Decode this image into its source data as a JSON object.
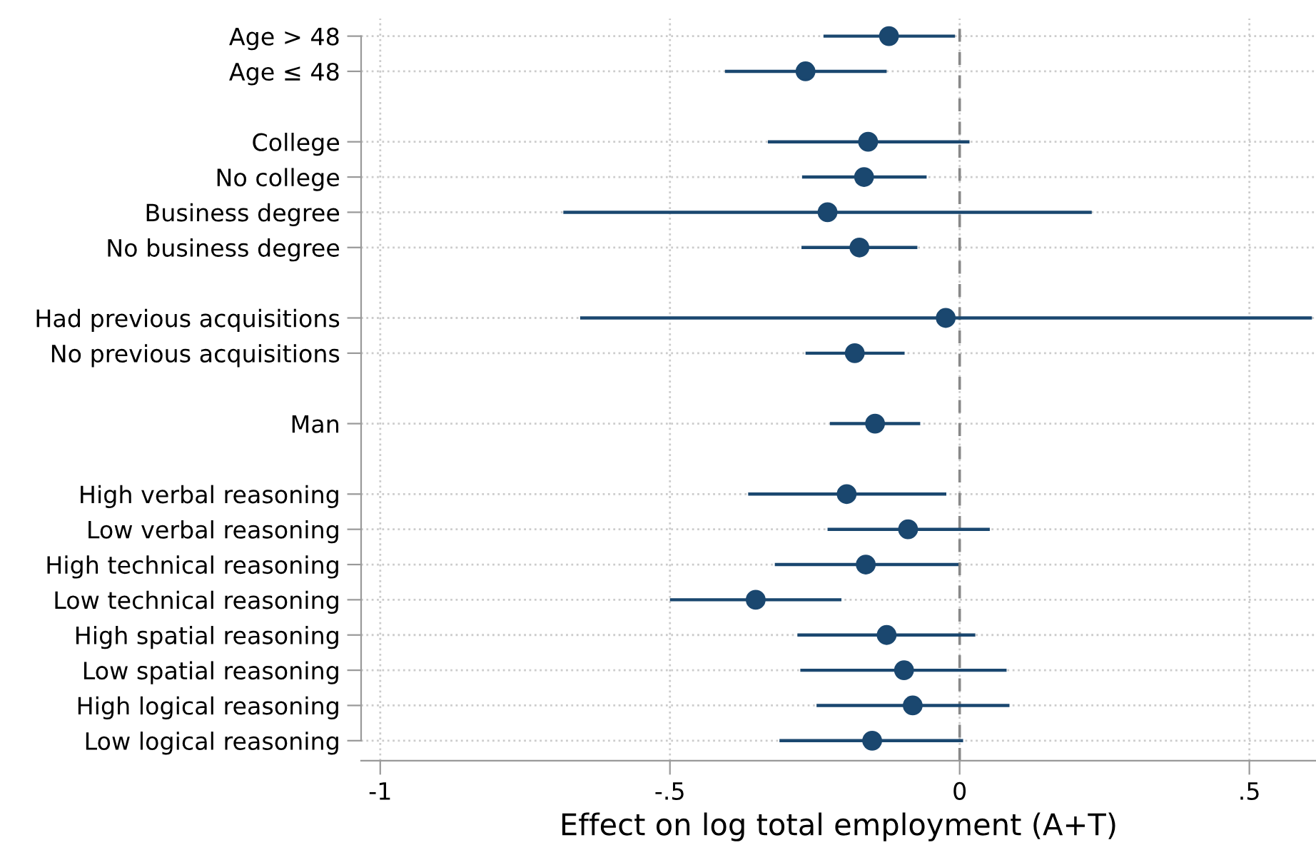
{
  "chart_data": {
    "type": "scatter",
    "orientation": "horizontal",
    "categories": [
      "Age > 48",
      "Age ≤ 48",
      null,
      "College",
      "No college",
      "Business degree",
      "No business degree",
      null,
      "Had previous acquisitions",
      "No previous acquisitions",
      null,
      "Man",
      null,
      "High verbal reasoning",
      "Low verbal reasoning",
      "High technical reasoning",
      "Low technical reasoning",
      "High spatial reasoning",
      "Low spatial reasoning",
      "High logical reasoning",
      "Low logical reasoning"
    ],
    "color": "#1a476f",
    "values": [
      -0.122,
      -0.266,
      null,
      -0.158,
      -0.165,
      -0.228,
      -0.173,
      null,
      -0.024,
      -0.181,
      null,
      -0.146,
      null,
      -0.195,
      -0.089,
      -0.162,
      -0.352,
      -0.126,
      -0.096,
      -0.081,
      -0.151
    ],
    "errors": [
      [
        -0.235,
        -0.008
      ],
      [
        -0.405,
        -0.126
      ],
      null,
      [
        -0.331,
        0.017
      ],
      [
        -0.272,
        -0.057
      ],
      [
        -0.684,
        0.228
      ],
      [
        -0.273,
        -0.073
      ],
      null,
      [
        -0.655,
        0.608
      ],
      [
        -0.266,
        -0.095
      ],
      null,
      [
        -0.224,
        -0.068
      ],
      null,
      [
        -0.365,
        -0.023
      ],
      [
        -0.228,
        0.052
      ],
      [
        -0.319,
        -0.002
      ],
      [
        -0.5,
        -0.204
      ],
      [
        -0.28,
        0.027
      ],
      [
        -0.275,
        0.081
      ],
      [
        -0.247,
        0.086
      ],
      [
        -0.311,
        0.006
      ]
    ],
    "xlabel": "Effect on log total employment (A+T)",
    "xlim": [
      -1.033,
      0.615
    ],
    "xticks": [
      {
        "value": -1,
        "label": "-1"
      },
      {
        "value": -0.5,
        "label": "-.5"
      },
      0,
      {
        "value": 0.5,
        "label": ".5"
      }
    ],
    "ref_lines": [
      {
        "axis": "x",
        "value": 0,
        "color": "#888888",
        "line_style": "dashed"
      }
    ],
    "grid": true,
    "marker": "circle"
  }
}
